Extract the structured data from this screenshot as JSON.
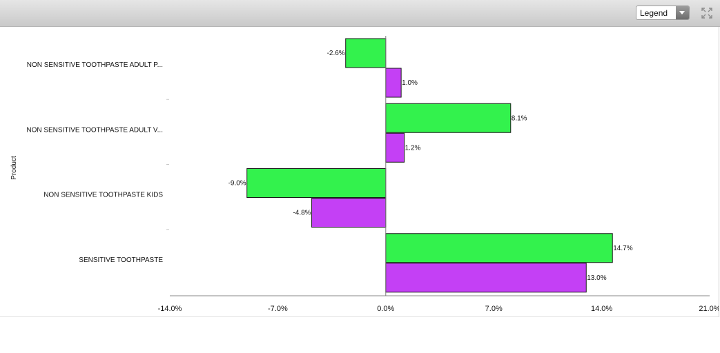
{
  "toolbar": {
    "legend_label": "Legend",
    "legend_arrow_icon": "chevron-down-icon",
    "expand_icon": "expand-icon"
  },
  "chart_data": {
    "type": "bar",
    "orientation": "horizontal",
    "title": "",
    "xlabel": "",
    "ylabel": "Product",
    "categories": [
      "NON SENSITIVE TOOTHPASTE ADULT P...",
      "NON SENSITIVE TOOTHPASTE ADULT V...",
      "NON SENSITIVE TOOTHPASTE KIDS",
      "SENSITIVE TOOTHPASTE"
    ],
    "series": [
      {
        "color": "#33f24d",
        "values": [
          -2.6,
          8.1,
          -9.0,
          14.7
        ],
        "labels": [
          "-2.6%",
          "8.1%",
          "-9.0%",
          "14.7%"
        ]
      },
      {
        "color": "#c440f5",
        "values": [
          1.0,
          1.2,
          -4.8,
          13.0
        ],
        "labels": [
          "1.0%",
          "1.2%",
          "-4.8%",
          "13.0%"
        ]
      }
    ],
    "xlim": [
      -14,
      21
    ],
    "xticks": [
      -14,
      -7,
      0,
      7,
      14,
      21
    ],
    "xtick_labels": [
      "-14.0%",
      "-7.0%",
      "0.0%",
      "7.0%",
      "14.0%",
      "21.0%"
    ],
    "grid": false,
    "legend_visible": false
  }
}
